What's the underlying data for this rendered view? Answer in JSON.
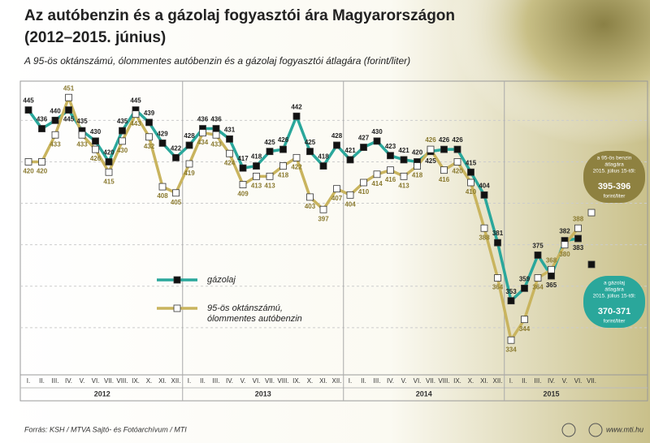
{
  "chart_data": {
    "type": "line",
    "title": [
      "Az autóbenzin és a gázolaj fogyasztói ára Magyarországon",
      "(2012–2015. június)"
    ],
    "subtitle": "A 95-ös oktánszámú, ólommentes autóbenzin és a gázolaj fogyasztói átlagára (forint/liter)",
    "categories": [
      "I.",
      "II.",
      "III.",
      "IV.",
      "V.",
      "VI.",
      "VII.",
      "VIII.",
      "IX.",
      "X.",
      "XI.",
      "XII.",
      "I.",
      "II.",
      "III.",
      "IV.",
      "V.",
      "VI.",
      "VII.",
      "VIII.",
      "IX.",
      "X.",
      "XI.",
      "XII.",
      "I.",
      "II.",
      "III.",
      "IV.",
      "V.",
      "VI.",
      "VII.",
      "VIII.",
      "IX.",
      "X.",
      "XI.",
      "XII.",
      "I.",
      "II.",
      "III.",
      "IV.",
      "V.",
      "VI.",
      "VII."
    ],
    "year_groups": [
      "2012",
      "2013",
      "2014",
      "2015"
    ],
    "series": [
      {
        "name": "gázolaj",
        "color": "#2aa79b",
        "marker": "#111111",
        "values": [
          445,
          436,
          440,
          445,
          435,
          430,
          420,
          435,
          445,
          439,
          429,
          422,
          428,
          436,
          436,
          431,
          417,
          418,
          425,
          426,
          442,
          425,
          418,
          428,
          421,
          427,
          430,
          423,
          421,
          420,
          425,
          426,
          426,
          415,
          404,
          381,
          353,
          359,
          375,
          365,
          382,
          383,
          null
        ],
        "forecast": {
          "value": 370.5,
          "lines": [
            "a gázolaj",
            "átlagára",
            "2015. július 15-től:"
          ],
          "range": "370-371",
          "unit": "forint/liter"
        }
      },
      {
        "name": "95-ös oktánszámú, ólommentes autóbenzin",
        "color": "#c9b45e",
        "marker": "#ffffff",
        "values": [
          420,
          420,
          433,
          451,
          433,
          426,
          415,
          430,
          443,
          432,
          408,
          405,
          419,
          434,
          433,
          424,
          409,
          413,
          413,
          418,
          422,
          403,
          397,
          407,
          404,
          410,
          414,
          416,
          413,
          418,
          426,
          416,
          420,
          410,
          388,
          364,
          334,
          344,
          364,
          368,
          380,
          388,
          null
        ],
        "forecast": {
          "value": 395.5,
          "lines": [
            "a 95-ös benzin",
            "átlagára",
            "2015. július 15-től:"
          ],
          "range": "395-396",
          "unit": "forint/liter"
        }
      }
    ],
    "ylim": [
      320,
      455
    ],
    "yticks": [
      340,
      360,
      380,
      400,
      420,
      440
    ],
    "grid": true,
    "source": "Forrás: KSH / MTVA Sajtó- és Fotóarchívum / MTI",
    "website": "www.mti.hu"
  }
}
